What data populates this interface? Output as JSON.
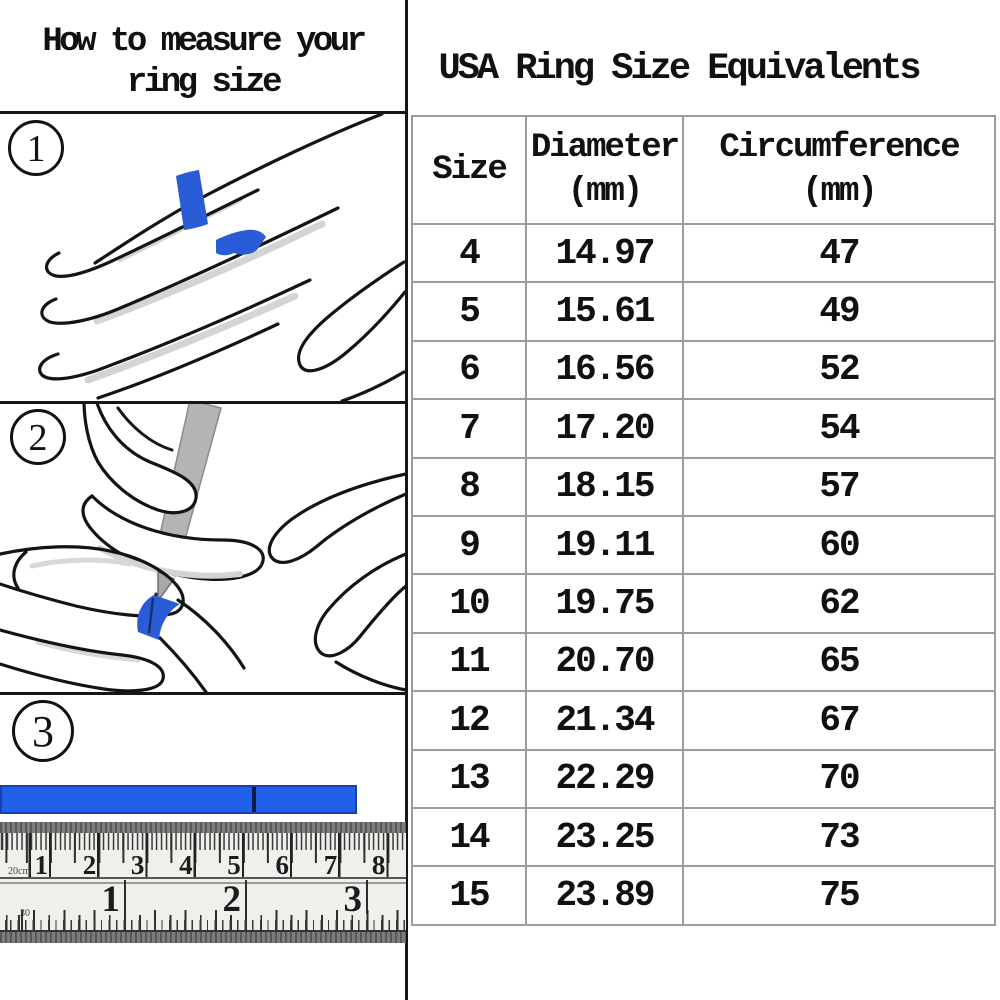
{
  "left_panel": {
    "title_line1": "How to measure your",
    "title_line2": "ring size",
    "steps": [
      {
        "number": "1"
      },
      {
        "number": "2"
      },
      {
        "number": "3"
      }
    ]
  },
  "right_panel": {
    "title": "USA Ring Size Equivalents",
    "table": {
      "headers": [
        {
          "label": "Size",
          "unit": ""
        },
        {
          "label": "Diameter",
          "unit": "(mm)"
        },
        {
          "label": "Circumference",
          "unit": "(mm)"
        }
      ],
      "rows": [
        [
          "4",
          "14.97",
          "47"
        ],
        [
          "5",
          "15.61",
          "49"
        ],
        [
          "6",
          "16.56",
          "52"
        ],
        [
          "7",
          "17.20",
          "54"
        ],
        [
          "8",
          "18.15",
          "57"
        ],
        [
          "9",
          "19.11",
          "60"
        ],
        [
          "10",
          "19.75",
          "62"
        ],
        [
          "11",
          "20.70",
          "65"
        ],
        [
          "12",
          "21.34",
          "67"
        ],
        [
          "13",
          "22.29",
          "70"
        ],
        [
          "14",
          "23.25",
          "73"
        ],
        [
          "15",
          "23.89",
          "75"
        ]
      ]
    }
  },
  "ruler": {
    "cm_numbers": [
      "1",
      "2",
      "3",
      "4",
      "5",
      "6",
      "7",
      "8"
    ],
    "cm_label": "20cm",
    "inch_numbers": [
      "1",
      "2",
      "3"
    ],
    "inch_label": "30"
  },
  "colors": {
    "strip_blue": "#2b5cd8",
    "bar_blue": "#2060ea",
    "line_black": "#161616",
    "table_border_gray": "#9c9c9c",
    "pen_gray": "#b4b4b2"
  }
}
